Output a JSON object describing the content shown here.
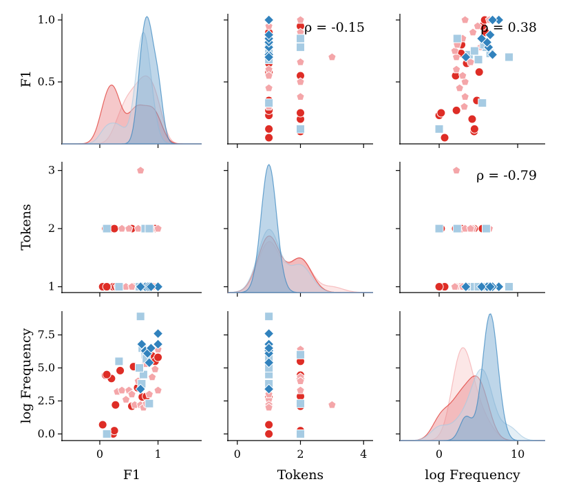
{
  "chart_data": {
    "type": "scatter",
    "variables": [
      "F1",
      "Tokens",
      "log Frequency"
    ],
    "axis_titles": {
      "F1": "F1",
      "Tokens": "Tokens",
      "log Frequency": "log Frequency"
    },
    "ranges": {
      "F1": [
        -0.65,
        1.75
      ],
      "Tokens": [
        -0.3,
        4.3
      ],
      "log Frequency": [
        -5.0,
        13.5
      ],
      "F1_y": [
        0.0,
        1.05
      ],
      "Tokens_y": [
        0.9,
        3.15
      ],
      "logFreq_y": [
        -0.5,
        9.3
      ]
    },
    "x_ticks": {
      "F1": [
        {
          "v": 0,
          "label": "0"
        },
        {
          "v": 1,
          "label": "1"
        }
      ],
      "Tokens": [
        {
          "v": 0,
          "label": "0"
        },
        {
          "v": 2,
          "label": "2"
        },
        {
          "v": 4,
          "label": "4"
        }
      ],
      "log Frequency": [
        {
          "v": 0,
          "label": "0"
        },
        {
          "v": 10,
          "label": "10"
        }
      ]
    },
    "y_ticks": {
      "F1": [
        {
          "v": 0.5,
          "label": "0.5"
        },
        {
          "v": 1.0,
          "label": "1.0"
        }
      ],
      "Tokens": [
        {
          "v": 1,
          "label": "1"
        },
        {
          "v": 2,
          "label": "2"
        },
        {
          "v": 3,
          "label": "3"
        }
      ],
      "log Frequency": [
        {
          "v": 0.0,
          "label": "0.0"
        },
        {
          "v": 2.5,
          "label": "2.5"
        },
        {
          "v": 5.0,
          "label": "5.0"
        },
        {
          "v": 7.5,
          "label": "7.5"
        }
      ]
    },
    "correlations": [
      {
        "row": 0,
        "col": 1,
        "label": "ρ = -0.15"
      },
      {
        "row": 0,
        "col": 2,
        "label": "ρ = 0.38"
      },
      {
        "row": 1,
        "col": 2,
        "label": "ρ = -0.79"
      }
    ],
    "series": [
      {
        "name": "red",
        "color": "#de2d26",
        "marker": "circle",
        "kde_fill": "#e8868a",
        "points": [
          {
            "f1": 0.05,
            "tokens": 1,
            "logfreq": 0.7
          },
          {
            "f1": 0.23,
            "tokens": 1,
            "logfreq": 0.0
          },
          {
            "f1": 0.1,
            "tokens": 2,
            "logfreq": 4.45
          },
          {
            "f1": 0.2,
            "tokens": 2,
            "logfreq": 4.2
          },
          {
            "f1": 0.35,
            "tokens": 1,
            "logfreq": 4.8
          },
          {
            "f1": 0.27,
            "tokens": 1,
            "logfreq": 2.2
          },
          {
            "f1": 0.58,
            "tokens": 1,
            "logfreq": 5.1
          },
          {
            "f1": 0.65,
            "tokens": 1,
            "logfreq": 3.5
          },
          {
            "f1": 0.73,
            "tokens": 1,
            "logfreq": 2.8
          },
          {
            "f1": 0.8,
            "tokens": 2,
            "logfreq": 2.85
          },
          {
            "f1": 0.9,
            "tokens": 1,
            "logfreq": 5.9
          },
          {
            "f1": 0.95,
            "tokens": 2,
            "logfreq": 5.5
          },
          {
            "f1": 1.0,
            "tokens": 1,
            "logfreq": 5.8
          },
          {
            "f1": 0.12,
            "tokens": 1,
            "logfreq": 4.5
          },
          {
            "f1": 0.25,
            "tokens": 2,
            "logfreq": 0.25
          },
          {
            "f1": 0.55,
            "tokens": 2,
            "logfreq": 2.1
          }
        ]
      },
      {
        "name": "pink",
        "color": "#f4a6a9",
        "marker": "pentagon",
        "kde_fill": "#f8c9c9",
        "points": [
          {
            "f1": 0.3,
            "tokens": 1,
            "logfreq": 3.2
          },
          {
            "f1": 0.38,
            "tokens": 2,
            "logfreq": 3.3
          },
          {
            "f1": 0.45,
            "tokens": 1,
            "logfreq": 2.6
          },
          {
            "f1": 0.5,
            "tokens": 2,
            "logfreq": 3.3
          },
          {
            "f1": 0.6,
            "tokens": 1,
            "logfreq": 2.2
          },
          {
            "f1": 0.7,
            "tokens": 3,
            "logfreq": 2.2
          },
          {
            "f1": 0.75,
            "tokens": 1,
            "logfreq": 2.0
          },
          {
            "f1": 0.8,
            "tokens": 2,
            "logfreq": 2.3
          },
          {
            "f1": 0.85,
            "tokens": 1,
            "logfreq": 3.0
          },
          {
            "f1": 0.9,
            "tokens": 2,
            "logfreq": 4.3
          },
          {
            "f1": 0.95,
            "tokens": 1,
            "logfreq": 4.9
          },
          {
            "f1": 1.0,
            "tokens": 1,
            "logfreq": 3.3
          },
          {
            "f1": 0.78,
            "tokens": 1,
            "logfreq": 5.3
          },
          {
            "f1": 0.66,
            "tokens": 2,
            "logfreq": 4.0
          },
          {
            "f1": 1.0,
            "tokens": 2,
            "logfreq": 6.4
          },
          {
            "f1": 0.55,
            "tokens": 1,
            "logfreq": 3.0
          }
        ]
      },
      {
        "name": "lightblue",
        "color": "#a6cbe3",
        "marker": "square",
        "kde_fill": "#c4dcec",
        "points": [
          {
            "f1": 0.12,
            "tokens": 2,
            "logfreq": 0.0
          },
          {
            "f1": 0.33,
            "tokens": 1,
            "logfreq": 5.5
          },
          {
            "f1": 0.7,
            "tokens": 1,
            "logfreq": 8.9
          },
          {
            "f1": 0.72,
            "tokens": 1,
            "logfreq": 3.8
          },
          {
            "f1": 0.75,
            "tokens": 1,
            "logfreq": 4.5
          },
          {
            "f1": 0.73,
            "tokens": 1,
            "logfreq": 6.5
          },
          {
            "f1": 0.78,
            "tokens": 2,
            "logfreq": 6.0
          },
          {
            "f1": 0.8,
            "tokens": 1,
            "logfreq": 5.7
          },
          {
            "f1": 0.85,
            "tokens": 2,
            "logfreq": 2.3
          },
          {
            "f1": 0.68,
            "tokens": 1,
            "logfreq": 5.0
          }
        ]
      },
      {
        "name": "blue",
        "color": "#3182bd",
        "marker": "diamond",
        "kde_fill": "#6fa4cf",
        "points": [
          {
            "f1": 0.72,
            "tokens": 1,
            "logfreq": 6.8
          },
          {
            "f1": 0.78,
            "tokens": 1,
            "logfreq": 6.3
          },
          {
            "f1": 0.82,
            "tokens": 1,
            "logfreq": 6.1
          },
          {
            "f1": 0.85,
            "tokens": 1,
            "logfreq": 5.4
          },
          {
            "f1": 1.0,
            "tokens": 1,
            "logfreq": 7.6
          },
          {
            "f1": 1.0,
            "tokens": 1,
            "logfreq": 6.8
          },
          {
            "f1": 0.88,
            "tokens": 1,
            "logfreq": 6.5
          },
          {
            "f1": 0.7,
            "tokens": 1,
            "logfreq": 3.4
          }
        ]
      }
    ]
  }
}
